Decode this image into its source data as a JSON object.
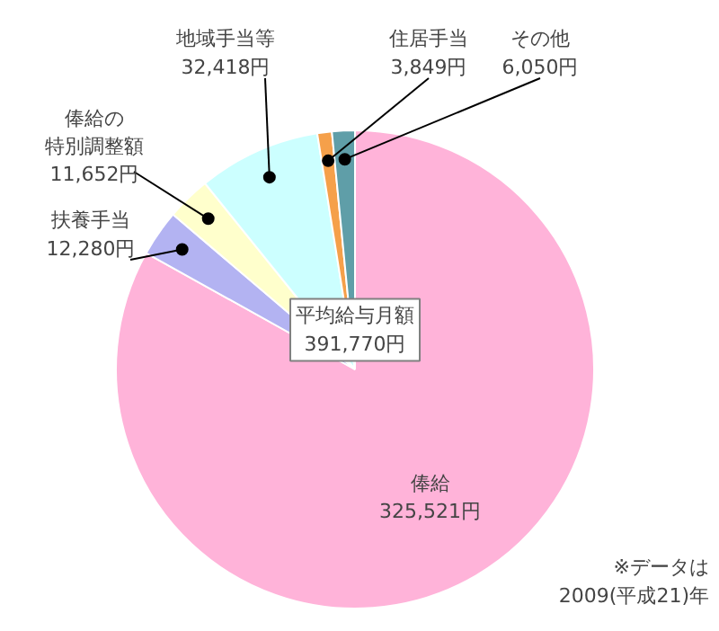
{
  "chart_data": {
    "type": "pie",
    "categories": [
      "俸給",
      "扶養手当",
      "俸給の特別調整額",
      "地域手当等",
      "住居手当",
      "その他"
    ],
    "values": [
      325521,
      12280,
      11652,
      32418,
      3849,
      6050
    ],
    "value_labels": [
      "325,521円",
      "12,280円",
      "11,652円",
      "32,418円",
      "3,849円",
      "6,050円"
    ],
    "colors": [
      "#ffb3d9",
      "#b3b3f2",
      "#ffffcc",
      "#ccffff",
      "#f5a04a",
      "#5f9ea8"
    ],
    "annotations": [
      "平均給与月額\n391,770円",
      "※データは\n2009(平成21)年"
    ]
  }
}
